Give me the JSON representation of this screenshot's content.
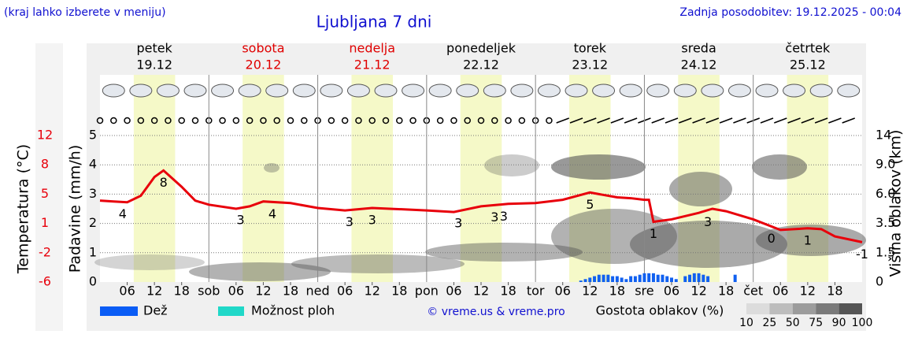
{
  "chart_data": {
    "type": "line",
    "title": "Ljubljana 7 dni",
    "note": "(kraj lahko izberete v meniju)",
    "updated": "Zadnja posodobitev: 19.12.2025 - 00:04",
    "days": [
      {
        "name": "petek",
        "date": "19.12",
        "color": "#000000"
      },
      {
        "name": "sobota",
        "date": "20.12",
        "color": "#e00000"
      },
      {
        "name": "nedelja",
        "date": "21.12",
        "color": "#e00000"
      },
      {
        "name": "ponedeljek",
        "date": "22.12",
        "color": "#000000"
      },
      {
        "name": "torek",
        "date": "23.12",
        "color": "#000000"
      },
      {
        "name": "sreda",
        "date": "24.12",
        "color": "#000000"
      },
      {
        "name": "četrtek",
        "date": "25.12",
        "color": "#000000"
      }
    ],
    "xlim": [
      0,
      168
    ],
    "xticks": [
      {
        "value": 6,
        "label": "06"
      },
      12,
      18,
      {
        "value": 24,
        "label": "sob"
      },
      {
        "value": 30,
        "label": "06"
      },
      {
        "value": 36,
        "label": "12"
      },
      {
        "value": 42,
        "label": "18"
      },
      {
        "value": 48,
        "label": "ned"
      },
      {
        "value": 54,
        "label": "06"
      },
      {
        "value": 60,
        "label": "12"
      },
      {
        "value": 66,
        "label": "18"
      },
      {
        "value": 72,
        "label": "pon"
      },
      {
        "value": 78,
        "label": "06"
      },
      {
        "value": 84,
        "label": "12"
      },
      {
        "value": 90,
        "label": "18"
      },
      {
        "value": 96,
        "label": "tor"
      },
      {
        "value": 102,
        "label": "06"
      },
      {
        "value": 108,
        "label": "12"
      },
      {
        "value": 114,
        "label": "18"
      },
      {
        "value": 120,
        "label": "sre"
      },
      {
        "value": 126,
        "label": "06"
      },
      {
        "value": 132,
        "label": "12"
      },
      {
        "value": 138,
        "label": "18"
      },
      {
        "value": 144,
        "label": "čet"
      },
      {
        "value": 150,
        "label": "06"
      },
      {
        "value": 156,
        "label": "12"
      },
      {
        "value": 162,
        "label": "18"
      }
    ],
    "ylabel": "Padavine (mm/h)",
    "ylim": [
      0,
      5
    ],
    "yticks": [
      0,
      1,
      2,
      3,
      4,
      5
    ],
    "grid": true,
    "y2label": "Višina oblakov (km)",
    "y2ticks": [
      0,
      1.5,
      3.5,
      {
        "value": 6,
        "label": "6.0"
      },
      {
        "value": 9,
        "label": "9.0"
      },
      14
    ],
    "temperature": {
      "label": "Temperatura (°C)",
      "color": "#e8000b",
      "ylim": [
        -6,
        12
      ],
      "yticks": [
        -6,
        {
          "value": -2.4,
          "label": "-2"
        },
        {
          "value": 1.2,
          "label": "1"
        },
        {
          "value": 4.8,
          "label": "5"
        },
        {
          "value": 8.4,
          "label": "8"
        },
        12
      ],
      "x": [
        0,
        3,
        6,
        9,
        12,
        14,
        18,
        21,
        24,
        30,
        33,
        36,
        42,
        48,
        54,
        60,
        72,
        78,
        84,
        90,
        96,
        102,
        108,
        111,
        114,
        117,
        120,
        121,
        122,
        126,
        132,
        135,
        138,
        144,
        150,
        156,
        159,
        162,
        168
      ],
      "values": [
        4.0,
        3.9,
        3.8,
        4.6,
        6.9,
        7.7,
        5.7,
        4.0,
        3.5,
        3.0,
        3.3,
        3.9,
        3.7,
        3.1,
        2.8,
        3.1,
        2.8,
        2.6,
        3.3,
        3.6,
        3.7,
        4.1,
        5.0,
        4.7,
        4.4,
        4.3,
        4.1,
        4.1,
        1.4,
        1.7,
        2.5,
        3.0,
        2.7,
        1.7,
        0.4,
        0.6,
        0.5,
        -0.4,
        -1.1
      ],
      "annotations": [
        {
          "x": 5,
          "value": 4
        },
        {
          "x": 14,
          "value": 8
        },
        {
          "x": 31,
          "value": 3
        },
        {
          "x": 38,
          "value": 4
        },
        {
          "x": 55,
          "value": 3
        },
        {
          "x": 60,
          "value": 3
        },
        {
          "x": 79,
          "value": 3
        },
        {
          "x": 87,
          "value": 3
        },
        {
          "x": 89,
          "value": 3
        },
        {
          "x": 108,
          "value": 5
        },
        {
          "x": 122,
          "value": 1
        },
        {
          "x": 134,
          "value": 3
        },
        {
          "x": 148,
          "value": 0
        },
        {
          "x": 156,
          "value": 1
        },
        {
          "x": 168,
          "value": -1
        }
      ]
    },
    "precipitation": {
      "color": "#1060f0",
      "x": [
        106,
        107,
        108,
        109,
        110,
        111,
        112,
        113,
        114,
        115,
        116,
        117,
        118,
        119,
        120,
        121,
        122,
        123,
        124,
        125,
        126,
        127,
        129,
        130,
        131,
        132,
        133,
        134,
        140
      ],
      "values": [
        0.05,
        0.1,
        0.15,
        0.2,
        0.25,
        0.25,
        0.25,
        0.2,
        0.2,
        0.15,
        0.1,
        0.2,
        0.2,
        0.25,
        0.3,
        0.3,
        0.3,
        0.25,
        0.25,
        0.2,
        0.15,
        0.1,
        0.2,
        0.25,
        0.3,
        0.3,
        0.25,
        0.2,
        0.25
      ]
    },
    "legend": [
      {
        "name": "Dež",
        "color": "#0a5cf5"
      },
      {
        "name": "Možnost ploh",
        "color": "#20d8c8"
      }
    ],
    "credit": "© vreme.us & vreme.pro",
    "cloud_legend": {
      "title": "Gostota oblakov (%)",
      "ticks": [
        10,
        25,
        50,
        75,
        90,
        100
      ],
      "colors": [
        "#dcdcdc",
        "#bdbdbd",
        "#9c9c9c",
        "#7a7a7a",
        "#555555"
      ]
    }
  }
}
